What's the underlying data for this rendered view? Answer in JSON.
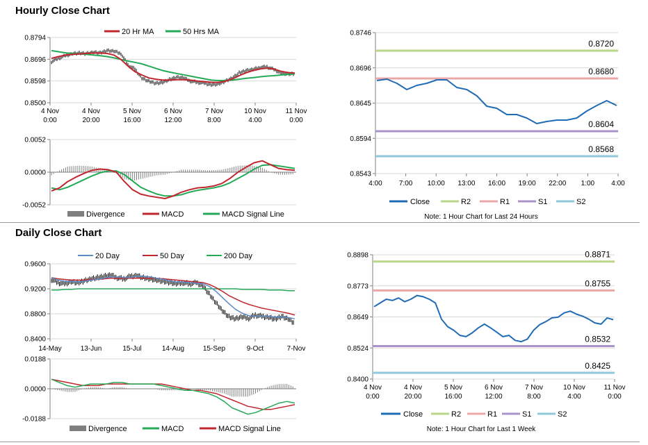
{
  "sections": {
    "hourly_title": "Hourly Close Chart",
    "daily_title": "Daily Close Chart"
  },
  "colors": {
    "ma_short": "#c0262d",
    "ma_long": "#24a957",
    "signal": "#24a957",
    "macd": "#c0262d",
    "divergence": "#7f7f7f",
    "close": "#1f6bb4",
    "r2": "#b9d68a",
    "r1": "#e9a8a5",
    "s1": "#a993c8",
    "s2": "#8fc9db",
    "day20": "#5b8bc8"
  },
  "chart_data": [
    {
      "id": "hourly-price",
      "type": "line",
      "ylim": [
        0.85,
        0.8794
      ],
      "yticks": [
        "0.8794",
        "0.8696",
        "0.8598",
        "0.8500"
      ],
      "xticks": [
        [
          "4 Nov",
          "0:00"
        ],
        [
          "4 Nov",
          "20:00"
        ],
        [
          "5 Nov",
          "16:00"
        ],
        [
          "6 Nov",
          "12:00"
        ],
        [
          "7 Nov",
          "8:00"
        ],
        [
          "10 Nov",
          "4:00"
        ],
        [
          "11 Nov",
          "0:00"
        ]
      ],
      "legend": [
        "20 Hr MA",
        "50 Hrs MA"
      ],
      "series": [
        {
          "name": "Price",
          "values": [
            0.8685,
            0.87,
            0.8712,
            0.8722,
            0.8725,
            0.8722,
            0.8728,
            0.8725,
            0.8735,
            0.8732,
            0.8722,
            0.867,
            0.8652,
            0.8612,
            0.8598,
            0.8588,
            0.8592,
            0.8605,
            0.8615,
            0.8612,
            0.8598,
            0.8592,
            0.8588,
            0.8582,
            0.8585,
            0.8598,
            0.8612,
            0.8635,
            0.8645,
            0.865,
            0.866,
            0.8662,
            0.865,
            0.8635,
            0.863,
            0.8632
          ]
        },
        {
          "name": "20 Hr MA",
          "values": [
            0.87,
            0.8708,
            0.8715,
            0.8718,
            0.872,
            0.8722,
            0.8724,
            0.8724,
            0.8722,
            0.8715,
            0.8695,
            0.8665,
            0.864,
            0.8625,
            0.8612,
            0.8606,
            0.8602,
            0.8602,
            0.8604,
            0.8604,
            0.8602,
            0.8598,
            0.8595,
            0.8592,
            0.8592,
            0.8597,
            0.8607,
            0.8622,
            0.8635,
            0.8645,
            0.8652,
            0.8656,
            0.8652,
            0.8642,
            0.8636,
            0.8634
          ]
        },
        {
          "name": "50 Hrs MA",
          "values": [
            0.8735,
            0.873,
            0.8725,
            0.8722,
            0.872,
            0.8718,
            0.8715,
            0.8712,
            0.8708,
            0.8702,
            0.8695,
            0.8688,
            0.8682,
            0.8675,
            0.8665,
            0.8655,
            0.8645,
            0.8638,
            0.8632,
            0.8626,
            0.862,
            0.8614,
            0.8608,
            0.8602,
            0.86,
            0.86,
            0.8602,
            0.8606,
            0.861,
            0.8613,
            0.8617,
            0.862,
            0.8622,
            0.8625,
            0.8628,
            0.863
          ]
        }
      ]
    },
    {
      "id": "hourly-macd",
      "type": "line",
      "ylim": [
        -0.0052,
        0.0052
      ],
      "yticks": [
        "0.0052",
        "0.0000",
        "-0.0052"
      ],
      "legend": [
        "Divergence",
        "MACD",
        "MACD Signal Line"
      ],
      "series": [
        {
          "name": "MACD",
          "values": [
            -0.003,
            -0.0025,
            -0.0015,
            -0.0008,
            -0.0002,
            0.0003,
            0.0005,
            0.0004,
            0.0,
            -0.0015,
            -0.0028,
            -0.0035,
            -0.0038,
            -0.004,
            -0.0042,
            -0.0038,
            -0.0032,
            -0.0028,
            -0.0025,
            -0.0024,
            -0.0022,
            -0.0018,
            -0.001,
            0.0,
            0.0008,
            0.0015,
            0.0018,
            0.0012,
            0.0006,
            0.0004,
            0.0003
          ]
        },
        {
          "name": "MACD Signal Line",
          "values": [
            -0.0025,
            -0.0028,
            -0.0024,
            -0.0018,
            -0.0012,
            -0.0006,
            -0.0001,
            0.0002,
            0.0002,
            -0.0004,
            -0.0014,
            -0.0024,
            -0.003,
            -0.0035,
            -0.0038,
            -0.0038,
            -0.0036,
            -0.0032,
            -0.0029,
            -0.0027,
            -0.0025,
            -0.0022,
            -0.0017,
            -0.001,
            -0.0003,
            0.0005,
            0.0011,
            0.0012,
            0.001,
            0.0008,
            0.0006
          ]
        },
        {
          "name": "Divergence",
          "values": [
            -0.0005,
            0.0003,
            0.0009,
            0.001,
            0.001,
            0.0009,
            0.0006,
            0.0002,
            -0.0002,
            -0.0011,
            -0.0014,
            -0.0011,
            -0.0008,
            -0.0005,
            -0.0004,
            0.0,
            0.0004,
            0.0004,
            0.0004,
            0.0003,
            0.0003,
            0.0004,
            0.0007,
            0.001,
            0.0011,
            0.001,
            0.0007,
            0.0,
            -0.0004,
            -0.0004,
            -0.0003
          ]
        }
      ]
    },
    {
      "id": "hourly-24h",
      "type": "line",
      "ylim": [
        0.8543,
        0.8746
      ],
      "yticks": [
        "0.8746",
        "0.8696",
        "0.8645",
        "0.8594",
        "0.8543"
      ],
      "xticks": [
        "4:00",
        "7:00",
        "10:00",
        "13:00",
        "16:00",
        "19:00",
        "22:00",
        "1:00",
        "4:00"
      ],
      "x": [
        "4:00",
        "5:00",
        "6:00",
        "7:00",
        "8:00",
        "9:00",
        "10:00",
        "11:00",
        "12:00",
        "13:00",
        "14:00",
        "15:00",
        "16:00",
        "17:00",
        "18:00",
        "19:00",
        "20:00",
        "21:00",
        "22:00",
        "23:00",
        "0:00",
        "1:00",
        "2:00",
        "3:00",
        "4:00"
      ],
      "legend": [
        "Close",
        "R2",
        "R1",
        "S1",
        "S2"
      ],
      "levels": [
        {
          "name": "R2",
          "value": 0.872,
          "label": "0.8720"
        },
        {
          "name": "R1",
          "value": 0.868,
          "label": "0.8680"
        },
        {
          "name": "S1",
          "value": 0.8604,
          "label": "0.8604"
        },
        {
          "name": "S2",
          "value": 0.8568,
          "label": "0.8568"
        }
      ],
      "series": [
        {
          "name": "Close",
          "values": [
            0.8677,
            0.8679,
            0.8673,
            0.8664,
            0.867,
            0.8673,
            0.8678,
            0.8678,
            0.8667,
            0.8664,
            0.8655,
            0.864,
            0.8637,
            0.8628,
            0.8628,
            0.8623,
            0.8615,
            0.8618,
            0.862,
            0.862,
            0.8623,
            0.8633,
            0.8641,
            0.8648,
            0.8641
          ]
        }
      ],
      "note": "Note: 1 Hour Chart for Last 24 Hours"
    },
    {
      "id": "daily-price",
      "type": "line",
      "ylim": [
        0.84,
        0.96
      ],
      "yticks": [
        "0.9600",
        "0.9200",
        "0.8800",
        "0.8400"
      ],
      "xticks": [
        "14-May",
        "13-Jun",
        "15-Jul",
        "14-Aug",
        "15-Sep",
        "9-Oct",
        "7-Nov"
      ],
      "legend": [
        "20 Day",
        "50 Day",
        "200 Day"
      ],
      "series": [
        {
          "name": "Price",
          "values": [
            0.935,
            0.93,
            0.928,
            0.932,
            0.93,
            0.933,
            0.936,
            0.938,
            0.94,
            0.942,
            0.938,
            0.936,
            0.94,
            0.942,
            0.938,
            0.936,
            0.934,
            0.932,
            0.93,
            0.928,
            0.93,
            0.928,
            0.93,
            0.925,
            0.912,
            0.898,
            0.885,
            0.875,
            0.872,
            0.875,
            0.873,
            0.878,
            0.876,
            0.875,
            0.872,
            0.876,
            0.872,
            0.865
          ]
        },
        {
          "name": "20 Day",
          "values": [
            0.938,
            0.934,
            0.932,
            0.932,
            0.931,
            0.932,
            0.934,
            0.935,
            0.937,
            0.939,
            0.939,
            0.938,
            0.938,
            0.94,
            0.94,
            0.939,
            0.937,
            0.935,
            0.933,
            0.931,
            0.931,
            0.93,
            0.929,
            0.928,
            0.924,
            0.916,
            0.906,
            0.896,
            0.887,
            0.881,
            0.877,
            0.876,
            0.876,
            0.876,
            0.875,
            0.875,
            0.874,
            0.872
          ]
        },
        {
          "name": "50 Day",
          "values": [
            0.938,
            0.936,
            0.935,
            0.934,
            0.934,
            0.934,
            0.935,
            0.935,
            0.936,
            0.937,
            0.937,
            0.937,
            0.937,
            0.937,
            0.937,
            0.937,
            0.937,
            0.936,
            0.935,
            0.934,
            0.933,
            0.932,
            0.931,
            0.93,
            0.927,
            0.922,
            0.916,
            0.909,
            0.904,
            0.899,
            0.895,
            0.892,
            0.889,
            0.887,
            0.885,
            0.883,
            0.881,
            0.878
          ]
        },
        {
          "name": "200 Day",
          "values": [
            0.918,
            0.918,
            0.919,
            0.919,
            0.92,
            0.92,
            0.92,
            0.92,
            0.92,
            0.92,
            0.92,
            0.92,
            0.92,
            0.92,
            0.92,
            0.92,
            0.92,
            0.92,
            0.92,
            0.92,
            0.92,
            0.92,
            0.92,
            0.92,
            0.92,
            0.92,
            0.92,
            0.92,
            0.92,
            0.919,
            0.919,
            0.919,
            0.919,
            0.918,
            0.918,
            0.918,
            0.917,
            0.917
          ]
        }
      ]
    },
    {
      "id": "daily-macd",
      "type": "line",
      "ylim": [
        -0.0188,
        0.0188
      ],
      "yticks": [
        "0.0188",
        "0.0000",
        "-0.0188"
      ],
      "legend": [
        "Divergence",
        "MACD",
        "MACD Signal Line"
      ],
      "series": [
        {
          "name": "MACD",
          "values": [
            0.006,
            0.004,
            0.002,
            0.001,
            0.002,
            0.003,
            0.003,
            0.003,
            0.004,
            0.004,
            0.003,
            0.003,
            0.003,
            0.003,
            0.002,
            0.001,
            0.0,
            -0.001,
            -0.001,
            -0.002,
            -0.003,
            -0.005,
            -0.008,
            -0.012,
            -0.014,
            -0.016,
            -0.015,
            -0.013,
            -0.011,
            -0.009,
            -0.008,
            -0.009
          ]
        },
        {
          "name": "MACD Signal Line",
          "values": [
            0.006,
            0.005,
            0.004,
            0.003,
            0.002,
            0.002,
            0.002,
            0.003,
            0.003,
            0.003,
            0.003,
            0.003,
            0.003,
            0.003,
            0.003,
            0.002,
            0.001,
            0.0,
            -0.001,
            -0.001,
            -0.002,
            -0.003,
            -0.005,
            -0.007,
            -0.009,
            -0.011,
            -0.012,
            -0.013,
            -0.013,
            -0.012,
            -0.011,
            -0.01
          ]
        },
        {
          "name": "Divergence",
          "values": [
            0.0,
            -0.001,
            -0.002,
            -0.002,
            0.0,
            0.001,
            0.001,
            0.0,
            0.001,
            0.001,
            0.0,
            0.0,
            0.0,
            0.0,
            -0.001,
            -0.001,
            -0.001,
            -0.001,
            0.0,
            -0.001,
            -0.001,
            -0.002,
            -0.003,
            -0.005,
            -0.005,
            -0.005,
            -0.003,
            0.0,
            0.002,
            0.003,
            0.003,
            0.001
          ]
        }
      ]
    },
    {
      "id": "weekly-close",
      "type": "line",
      "ylim": [
        0.84,
        0.8898
      ],
      "yticks": [
        "0.8898",
        "0.8773",
        "0.8649",
        "0.8524",
        "0.8400"
      ],
      "xticks": [
        [
          "4 Nov",
          "0:00"
        ],
        [
          "4 Nov",
          "20:00"
        ],
        [
          "5 Nov",
          "16:00"
        ],
        [
          "6 Nov",
          "12:00"
        ],
        [
          "7 Nov",
          "8:00"
        ],
        [
          "10 Nov",
          "4:00"
        ],
        [
          "11 Nov",
          "0:00"
        ]
      ],
      "legend": [
        "Close",
        "R2",
        "R1",
        "S1",
        "S2"
      ],
      "levels": [
        {
          "name": "R2",
          "value": 0.8871,
          "label": "0.8871"
        },
        {
          "name": "R1",
          "value": 0.8755,
          "label": "0.8755"
        },
        {
          "name": "S1",
          "value": 0.8532,
          "label": "0.8532"
        },
        {
          "name": "S2",
          "value": 0.8425,
          "label": "0.8425"
        }
      ],
      "series": [
        {
          "name": "Close",
          "values": [
            0.869,
            0.8705,
            0.872,
            0.8715,
            0.8725,
            0.871,
            0.872,
            0.8735,
            0.873,
            0.872,
            0.8705,
            0.864,
            0.861,
            0.8595,
            0.8575,
            0.857,
            0.8585,
            0.8605,
            0.862,
            0.8605,
            0.8588,
            0.857,
            0.8575,
            0.8555,
            0.855,
            0.856,
            0.8595,
            0.8618,
            0.863,
            0.8645,
            0.8648,
            0.8665,
            0.8672,
            0.866,
            0.8652,
            0.864,
            0.8625,
            0.862,
            0.8645,
            0.8638
          ]
        }
      ],
      "note": "Note: 1 Hour Chart for Last 1 Week"
    }
  ]
}
